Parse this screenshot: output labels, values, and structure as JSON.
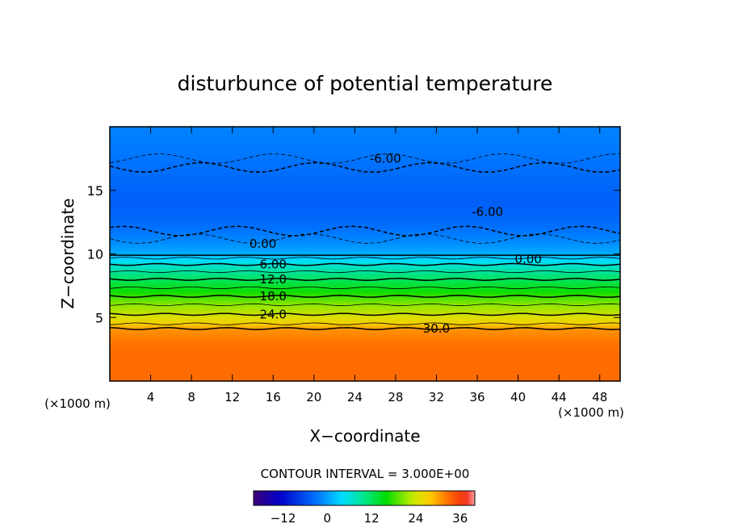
{
  "chart_data": {
    "type": "heatmap",
    "title": "disturbunce of potential temperature",
    "xlabel": "X−coordinate",
    "ylabel": "Z−coordinate",
    "x_unit_left": "(×1000 m)",
    "x_unit_right": "(×1000 m)",
    "xlim": [
      0,
      50
    ],
    "ylim": [
      0,
      20
    ],
    "x_ticks": [
      4,
      8,
      12,
      16,
      20,
      24,
      28,
      32,
      36,
      40,
      44,
      48
    ],
    "y_ticks": [
      5,
      10,
      15
    ],
    "z_profile": {
      "z": [
        0,
        1,
        2,
        3,
        4,
        4.5,
        5,
        6,
        7,
        8,
        9,
        9.5,
        10,
        11,
        12,
        13,
        14,
        15,
        16,
        17,
        18,
        19.5
      ],
      "value": [
        33,
        33,
        33,
        32.5,
        31,
        27,
        25,
        21,
        16.5,
        12,
        7,
        4,
        1,
        -1.5,
        -3,
        -4,
        -4.5,
        -4,
        -3.5,
        -3,
        -2.5,
        -2
      ]
    },
    "contour_labels": [
      "-6.00",
      "-6.00",
      "0.00",
      "0.00",
      "6.00",
      "12.0",
      "18.0",
      "24.0",
      "30.0"
    ],
    "contour_interval_text": "CONTOUR INTERVAL = 3.000E+00",
    "colorbar": {
      "range": [
        -20,
        40
      ],
      "ticks": [
        "−12",
        "0",
        "12",
        "24",
        "36"
      ]
    },
    "grid": false
  }
}
